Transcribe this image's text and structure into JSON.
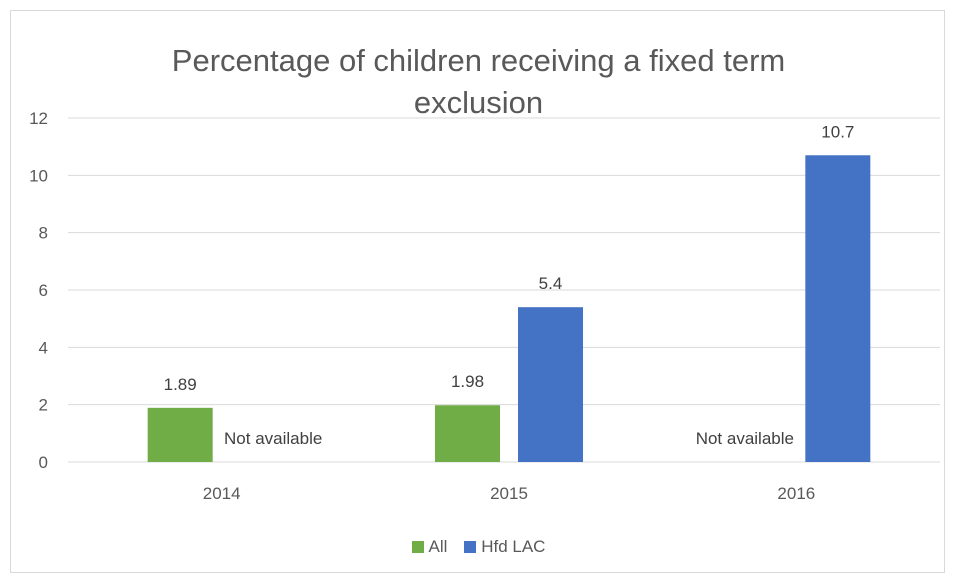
{
  "chart_data": {
    "type": "bar",
    "title": "Percentage of children receiving a fixed term exclusion",
    "categories": [
      "2014",
      "2015",
      "2016"
    ],
    "series": [
      {
        "name": "All",
        "color": "#70ad47",
        "values": [
          1.89,
          1.98,
          null
        ],
        "labels": [
          "1.89",
          "1.98",
          ""
        ]
      },
      {
        "name": "Hfd LAC",
        "color": "#4472c4",
        "values": [
          null,
          5.4,
          10.7
        ],
        "labels": [
          "",
          "5.4",
          "10.7"
        ]
      }
    ],
    "annotations": [
      {
        "category": "2014",
        "text": "Not available"
      },
      {
        "category": "2016",
        "text": "Not available"
      }
    ],
    "y_ticks": [
      "0",
      "2",
      "4",
      "6",
      "8",
      "10",
      "12"
    ],
    "ylim": [
      0,
      12
    ],
    "grid": true,
    "legend_position": "bottom"
  }
}
